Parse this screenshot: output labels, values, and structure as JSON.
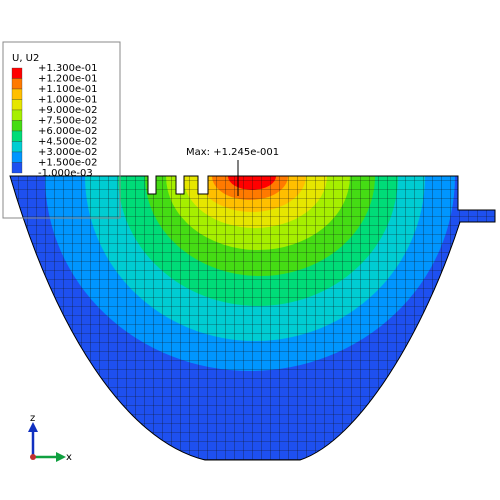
{
  "legend": {
    "title": "U, U2",
    "labels": [
      "+1.300e-01",
      "+1.200e-01",
      "+1.100e-01",
      "+1.000e-01",
      "+9.000e-02",
      "+7.500e-02",
      "+6.000e-02",
      "+4.500e-02",
      "+3.000e-02",
      "+1.500e-02",
      "-1.000e-03"
    ],
    "colors": [
      "#ff0000",
      "#ff7a00",
      "#ffbf00",
      "#e6e600",
      "#a6ef00",
      "#45dc14",
      "#00dc78",
      "#00cdd2",
      "#0096ff",
      "#1e50f0"
    ]
  },
  "max_label": "Max: +1.245e-001",
  "triad": {
    "z": "z",
    "x": "x"
  }
}
